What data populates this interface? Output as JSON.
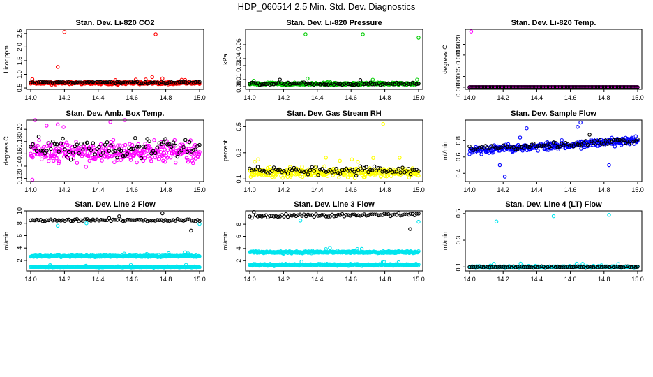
{
  "page_title": "HDP_060514  2.5 Min. Std. Dev. Diagnostics",
  "colors": {
    "red": "#ff0000",
    "green": "#00cc00",
    "magenta": "#ff00ff",
    "yellow": "#ffff00",
    "blue": "#0000ff",
    "cyan": "#00e5ee",
    "black": "#000000"
  },
  "chart_data": [
    {
      "type": "scatter",
      "title": "Stan. Dev. Li-820 CO2",
      "xlabel": "",
      "ylabel": "Licor ppm",
      "xlim": [
        14.0,
        15.0
      ],
      "ylim": [
        0.45,
        2.65
      ],
      "xticks": [
        "14.0",
        "14.2",
        "14.4",
        "14.6",
        "14.8",
        "15.0"
      ],
      "yticks": [
        {
          "v": 0.5,
          "t": "0.5"
        },
        {
          "v": 1.0,
          "t": "1.0"
        },
        {
          "v": 1.5,
          "t": "1.5"
        },
        {
          "v": 2.0,
          "t": "2.0"
        },
        {
          "v": 2.5,
          "t": "2.5"
        }
      ],
      "series": [
        {
          "name": "dense",
          "color": "red",
          "n": 340,
          "step": 0.0029,
          "center": 0.68,
          "spread": 0.07,
          "outliers": [
            [
              14.2,
              2.55
            ],
            [
              14.16,
              1.27
            ],
            [
              14.74,
              2.47
            ],
            [
              14.01,
              0.82
            ],
            [
              14.72,
              0.9
            ],
            [
              14.78,
              0.85
            ]
          ]
        },
        {
          "name": "sparse",
          "color": "black",
          "n": 85,
          "step": 0.0118,
          "center": 0.7,
          "spread": 0.06,
          "outliers": []
        }
      ]
    },
    {
      "type": "scatter",
      "title": "Stan. Dev. Li-820 Pressure",
      "xlabel": "",
      "ylabel": "kPa",
      "xlim": [
        14.0,
        15.0
      ],
      "ylim": [
        -0.004,
        0.082
      ],
      "xticks": [
        "14.0",
        "14.2",
        "14.4",
        "14.6",
        "14.8",
        "15.0"
      ],
      "yticks": [
        {
          "v": 0.0,
          "t": "0.00"
        },
        {
          "v": 0.01,
          "t": "0.01"
        },
        {
          "v": 0.03,
          "t": "0.03"
        },
        {
          "v": 0.04,
          "t": "0.04"
        },
        {
          "v": 0.06,
          "t": "0.06"
        }
      ],
      "series": [
        {
          "name": "dense",
          "color": "green",
          "n": 340,
          "step": 0.0029,
          "center": 0.004,
          "spread": 0.003,
          "outliers": [
            [
              14.33,
              0.075
            ],
            [
              14.67,
              0.075
            ],
            [
              15.0,
              0.07
            ]
          ]
        },
        {
          "name": "sparse",
          "color": "black",
          "n": 85,
          "step": 0.0118,
          "center": 0.004,
          "spread": 0.003,
          "outliers": []
        }
      ]
    },
    {
      "type": "scatter",
      "title": "Stan. Dev. Li-820 Temp.",
      "xlabel": "",
      "ylabel": "degrees C",
      "xlim": [
        14.0,
        15.0
      ],
      "ylim": [
        -0.0001,
        0.0027
      ],
      "xticks": [
        "14.0",
        "14.2",
        "14.4",
        "14.6",
        "14.8",
        "15.0"
      ],
      "yticks": [
        {
          "v": 0.0,
          "t": "0.0000"
        },
        {
          "v": 0.0005,
          "t": "0.0005"
        },
        {
          "v": 0.0015,
          "t": "0.0015"
        },
        {
          "v": 0.002,
          "t": "0.0020"
        }
      ],
      "series": [
        {
          "name": "dense",
          "color": "magenta",
          "n": 340,
          "step": 0.0029,
          "center": 0.0,
          "spread": 0.0,
          "outliers": [
            [
              14.01,
              0.0026
            ]
          ]
        },
        {
          "name": "sparse",
          "color": "black",
          "n": 120,
          "step": 0.0083,
          "center": 0.0,
          "spread": 0.0,
          "outliers": []
        }
      ]
    },
    {
      "type": "scatter",
      "title": "Stan. Dev. Amb. Box Temp.",
      "xlabel": "",
      "ylabel": "degrees C",
      "xlim": [
        14.0,
        15.0
      ],
      "ylim": [
        0.115,
        0.215
      ],
      "xticks": [
        "14.0",
        "14.2",
        "14.4",
        "14.6",
        "14.8",
        "15.0"
      ],
      "yticks": [
        {
          "v": 0.12,
          "t": "0.12"
        },
        {
          "v": 0.14,
          "t": "0.14"
        },
        {
          "v": 0.16,
          "t": "0.16"
        },
        {
          "v": 0.18,
          "t": "0.18"
        },
        {
          "v": 0.2,
          "t": "0.20"
        }
      ],
      "series": [
        {
          "name": "dense",
          "color": "magenta",
          "n": 340,
          "step": 0.0029,
          "center": 0.163,
          "spread": 0.03,
          "outliers": [
            [
              14.01,
              0.118
            ],
            [
              14.16,
              0.208
            ]
          ]
        },
        {
          "name": "sparse",
          "color": "black",
          "n": 85,
          "step": 0.0118,
          "center": 0.17,
          "spread": 0.028,
          "outliers": []
        }
      ]
    },
    {
      "type": "scatter",
      "title": "Stan. Dev. Gas Stream RH",
      "xlabel": "",
      "ylabel": "percent",
      "xlim": [
        14.0,
        15.0
      ],
      "ylim": [
        0.08,
        0.55
      ],
      "xticks": [
        "14.0",
        "14.2",
        "14.4",
        "14.6",
        "14.8",
        "15.0"
      ],
      "yticks": [
        {
          "v": 0.1,
          "t": "0.1"
        },
        {
          "v": 0.3,
          "t": "0.3"
        },
        {
          "v": 0.5,
          "t": "0.5"
        }
      ],
      "series": [
        {
          "name": "dense",
          "color": "yellow",
          "n": 340,
          "step": 0.0029,
          "center": 0.15,
          "spread": 0.06,
          "outliers": [
            [
              14.79,
              0.52
            ],
            [
              14.05,
              0.25
            ]
          ]
        },
        {
          "name": "sparse",
          "color": "black",
          "n": 85,
          "step": 0.0118,
          "center": 0.165,
          "spread": 0.05,
          "outliers": []
        }
      ]
    },
    {
      "type": "scatter",
      "title": "Stan. Dev. Sample Flow",
      "xlabel": "",
      "ylabel": "ml/min",
      "xlim": [
        14.0,
        15.0
      ],
      "ylim": [
        0.3,
        1.05
      ],
      "xticks": [
        "14.0",
        "14.2",
        "14.4",
        "14.6",
        "14.8",
        "15.0"
      ],
      "yticks": [
        {
          "v": 0.4,
          "t": "0.4"
        },
        {
          "v": 0.6,
          "t": "0.6"
        },
        {
          "v": 0.8,
          "t": "0.8"
        }
      ],
      "series": [
        {
          "name": "dense",
          "color": "blue",
          "n": 340,
          "step": 0.0029,
          "center": 0.68,
          "spread": 0.08,
          "trend": 0.12,
          "outliers": [
            [
              14.21,
              0.36
            ],
            [
              14.34,
              0.95
            ],
            [
              14.66,
              1.02
            ],
            [
              14.83,
              0.5
            ],
            [
              14.18,
              0.5
            ]
          ]
        },
        {
          "name": "sparse",
          "color": "black",
          "n": 85,
          "step": 0.0118,
          "center": 0.7,
          "spread": 0.06,
          "trend": 0.1,
          "outliers": []
        }
      ]
    },
    {
      "type": "scatter",
      "title": "Stan. Dev. Line 2 Flow",
      "xlabel": "",
      "ylabel": "ml/min",
      "xlim": [
        14.0,
        15.0
      ],
      "ylim": [
        0.3,
        10.0
      ],
      "xticks": [
        "14.0",
        "14.2",
        "14.4",
        "14.6",
        "14.8",
        "15.0"
      ],
      "yticks": [
        {
          "v": 2,
          "t": "2"
        },
        {
          "v": 4,
          "t": "4"
        },
        {
          "v": 6,
          "t": "6"
        },
        {
          "v": 8,
          "t": "8"
        },
        {
          "v": 10,
          "t": "10"
        }
      ],
      "series": [
        {
          "name": "cyan-upper",
          "color": "cyan",
          "n": 340,
          "step": 0.0029,
          "center": 2.7,
          "spread": 0.25,
          "outliers": [
            [
              14.16,
              7.6
            ],
            [
              14.33,
              8.0
            ],
            [
              15.0,
              7.9
            ]
          ]
        },
        {
          "name": "cyan-lower",
          "color": "cyan",
          "n": 340,
          "step": 0.0029,
          "center": 0.9,
          "spread": 0.2,
          "outliers": []
        },
        {
          "name": "black",
          "color": "black",
          "n": 85,
          "step": 0.0118,
          "center": 8.5,
          "spread": 0.3,
          "outliers": [
            [
              14.95,
              6.8
            ],
            [
              14.78,
              9.6
            ]
          ]
        }
      ]
    },
    {
      "type": "scatter",
      "title": "Stan. Dev. Line 3 Flow",
      "xlabel": "",
      "ylabel": "ml/min",
      "xlim": [
        14.0,
        15.0
      ],
      "ylim": [
        0.3,
        10.2
      ],
      "xticks": [
        "14.0",
        "14.2",
        "14.4",
        "14.6",
        "14.8",
        "15.0"
      ],
      "yticks": [
        {
          "v": 2,
          "t": "2"
        },
        {
          "v": 4,
          "t": "4"
        },
        {
          "v": 6,
          "t": "6"
        },
        {
          "v": 8,
          "t": "8"
        }
      ],
      "series": [
        {
          "name": "cyan-upper",
          "color": "cyan",
          "n": 340,
          "step": 0.0029,
          "center": 3.4,
          "spread": 0.3,
          "outliers": [
            [
              14.3,
              8.6
            ],
            [
              15.0,
              8.4
            ]
          ]
        },
        {
          "name": "cyan-lower",
          "color": "cyan",
          "n": 340,
          "step": 0.0029,
          "center": 1.3,
          "spread": 0.25,
          "outliers": []
        },
        {
          "name": "black",
          "color": "black",
          "n": 85,
          "step": 0.0118,
          "center": 9.3,
          "spread": 0.4,
          "trend": 0.4,
          "outliers": [
            [
              14.95,
              7.2
            ]
          ]
        }
      ]
    },
    {
      "type": "scatter",
      "title": "Stan. Dev. Line 4 (LT) Flow",
      "xlabel": "",
      "ylabel": "ml/min",
      "xlim": [
        14.0,
        15.0
      ],
      "ylim": [
        0.07,
        0.52
      ],
      "xticks": [
        "14.0",
        "14.2",
        "14.4",
        "14.6",
        "14.8",
        "15.0"
      ],
      "yticks": [
        {
          "v": 0.1,
          "t": "0.1"
        },
        {
          "v": 0.3,
          "t": "0.3"
        },
        {
          "v": 0.5,
          "t": "0.5"
        }
      ],
      "series": [
        {
          "name": "dense",
          "color": "cyan",
          "n": 340,
          "step": 0.0029,
          "center": 0.1,
          "spread": 0.012,
          "outliers": [
            [
              14.16,
              0.44
            ],
            [
              14.5,
              0.48
            ],
            [
              14.83,
              0.49
            ]
          ]
        },
        {
          "name": "sparse",
          "color": "black",
          "n": 85,
          "step": 0.0118,
          "center": 0.1,
          "spread": 0.01,
          "outliers": []
        }
      ]
    }
  ]
}
